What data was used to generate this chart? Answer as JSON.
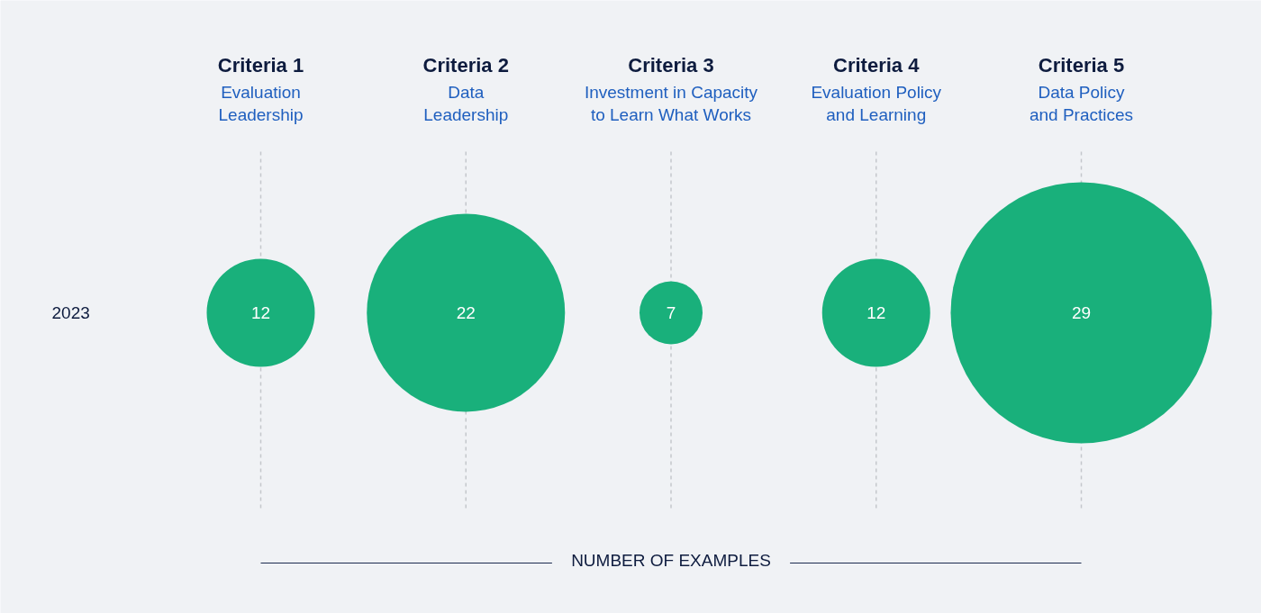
{
  "chart_data": {
    "type": "other",
    "categories": [
      "Criteria 1\nEvaluation\nLeadership",
      "Criteria 2\nData\nLeadership",
      "Criteria 3\nInvestment in Capacity\nto Learn What Works",
      "Criteria 4\nEvaluation Policy\nand Learning",
      "Criteria 5\nData Policy\nand Practices"
    ],
    "series": [
      {
        "name": "2023",
        "color": "#19b07b",
        "values": [
          12,
          22,
          7,
          12,
          29
        ]
      }
    ],
    "data_labels": true,
    "annotations": [
      "NUMBER OF EXAMPLES"
    ]
  }
}
